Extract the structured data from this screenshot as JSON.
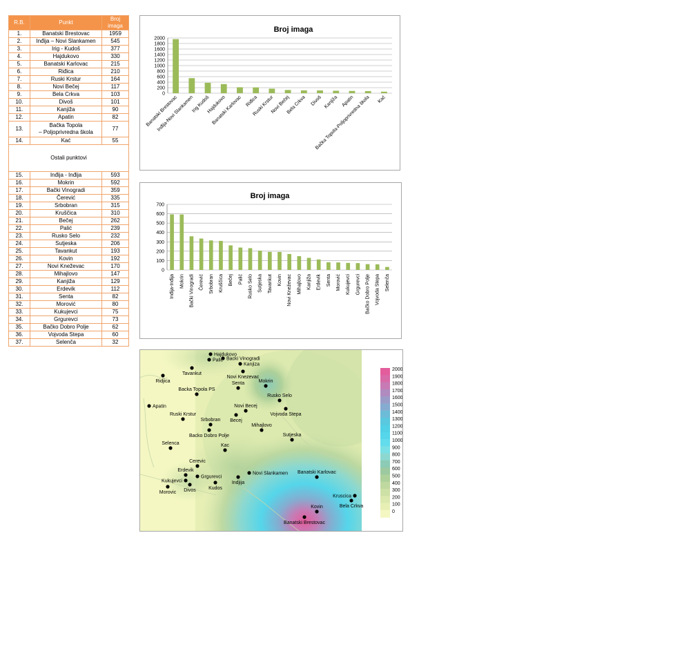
{
  "table": {
    "headers": [
      "R.B.",
      "Punkt",
      "Broj imaga"
    ],
    "rows": [
      {
        "rb": "1.",
        "punkt": "Banatski Brestovac",
        "broj": "1959"
      },
      {
        "rb": "2.",
        "punkt": "Inđija – Novi Slankamen",
        "broj": "545"
      },
      {
        "rb": "3.",
        "punkt": "Irig - Kudoš",
        "broj": "377"
      },
      {
        "rb": "4.",
        "punkt": "Hajdukovo",
        "broj": "330"
      },
      {
        "rb": "5.",
        "punkt": "Banatski Karlovac",
        "broj": "215"
      },
      {
        "rb": "6.",
        "punkt": "Riđica",
        "broj": "210"
      },
      {
        "rb": "7.",
        "punkt": "Ruski Krstur",
        "broj": "164"
      },
      {
        "rb": "8.",
        "punkt": "Novi Bečej",
        "broj": "117"
      },
      {
        "rb": "9.",
        "punkt": "Bela Crkva",
        "broj": "103"
      },
      {
        "rb": "10.",
        "punkt": "Divoš",
        "broj": "101"
      },
      {
        "rb": "11.",
        "punkt": "Kanjiža",
        "broj": "90"
      },
      {
        "rb": "12.",
        "punkt": "Apatin",
        "broj": "82"
      },
      {
        "rb": "13.",
        "punkt": "Bačka Topola – Poljoprivredna škola",
        "punkt1": "Bačka Topola",
        "punkt2": "– Poljoprivredna škola",
        "broj": "77"
      },
      {
        "rb": "14.",
        "punkt": "Kać",
        "broj": "55"
      }
    ],
    "section_label": "Ostali punktovi",
    "rows2": [
      {
        "rb": "15.",
        "punkt": "Inđija - Inđija",
        "broj": "593"
      },
      {
        "rb": "16.",
        "punkt": "Mokrin",
        "broj": "592"
      },
      {
        "rb": "17.",
        "punkt": "Bački Vinogradi",
        "broj": "359"
      },
      {
        "rb": "18.",
        "punkt": "Čerević",
        "broj": "335"
      },
      {
        "rb": "19.",
        "punkt": "Srbobran",
        "broj": "315"
      },
      {
        "rb": "20.",
        "punkt": "Kruščica",
        "broj": "310"
      },
      {
        "rb": "21.",
        "punkt": "Bečej",
        "broj": "262"
      },
      {
        "rb": "22.",
        "punkt": "Palić",
        "broj": "239"
      },
      {
        "rb": "23.",
        "punkt": "Rusko Selo",
        "broj": "232"
      },
      {
        "rb": "24.",
        "punkt": "Sutjeska",
        "broj": "206"
      },
      {
        "rb": "25.",
        "punkt": "Tavankut",
        "broj": "193"
      },
      {
        "rb": "26.",
        "punkt": "Kovin",
        "broj": "192"
      },
      {
        "rb": "27.",
        "punkt": "Novi Kneževac",
        "broj": "170"
      },
      {
        "rb": "28.",
        "punkt": "Mihajlovo",
        "broj": "147"
      },
      {
        "rb": "29.",
        "punkt": "Kanjiža",
        "broj": "129"
      },
      {
        "rb": "30.",
        "punkt": "Erdevik",
        "broj": "112"
      },
      {
        "rb": "31.",
        "punkt": "Senta",
        "broj": "82"
      },
      {
        "rb": "32.",
        "punkt": "Morović",
        "broj": "80"
      },
      {
        "rb": "33.",
        "punkt": "Kukujevci",
        "broj": "75"
      },
      {
        "rb": "34.",
        "punkt": "Grgurevci",
        "broj": "73"
      },
      {
        "rb": "35.",
        "punkt": "Bačko Dobro Polje",
        "broj": "62"
      },
      {
        "rb": "36.",
        "punkt": "Vojvoda Stepa",
        "broj": "60"
      },
      {
        "rb": "37.",
        "punkt": "Selenča",
        "broj": "32"
      }
    ]
  },
  "chart_data": [
    {
      "type": "bar",
      "title": "Broj imaga",
      "categories": [
        "Banatski Brestovac",
        "Inđija-Novi Slankamen",
        "Irig Kudoš",
        "Hajdukovo",
        "Banatski Karlovac",
        "Riđica",
        "Ruski Krstur",
        "Novi Bečej",
        "Bela Crkva",
        "Divoš",
        "Kanjiža",
        "Apatin",
        "Bačka Topola-Poljoprivredna škola",
        "Kać"
      ],
      "values": [
        1959,
        545,
        377,
        330,
        215,
        210,
        164,
        117,
        103,
        101,
        90,
        82,
        77,
        55
      ],
      "yticks": [
        "0",
        "200",
        "400",
        "600",
        "800",
        "1000",
        "1200",
        "1400",
        "1600",
        "1800",
        "2000"
      ],
      "ylim": [
        0,
        2000
      ],
      "grid": true,
      "color": "#9bbb59"
    },
    {
      "type": "bar",
      "title": "Broj imaga",
      "categories": [
        "Inđija-Inđija",
        "Mokrin",
        "Bački Vinogradi",
        "Čerević",
        "Srbobran",
        "Kruščica",
        "Bečej",
        "Palić",
        "Rusko Selo",
        "Sutjeska",
        "Tavankut",
        "Kovin",
        "Novi Kneževac",
        "Mihajlovo",
        "Kanjiža",
        "Erdevik",
        "Senta",
        "Morović",
        "Kukujevci",
        "Grgurevci",
        "Bačko Dobro Polje",
        "Vojvoda Stepa",
        "Selenča"
      ],
      "values": [
        593,
        592,
        359,
        335,
        315,
        310,
        262,
        239,
        232,
        206,
        193,
        192,
        170,
        147,
        129,
        112,
        82,
        80,
        75,
        73,
        62,
        60,
        32
      ],
      "yticks": [
        "0",
        "100",
        "200",
        "300",
        "400",
        "500",
        "600",
        "700"
      ],
      "ylim": [
        0,
        700
      ],
      "grid": true,
      "color": "#9bbb59"
    },
    {
      "type": "heatmap",
      "legend_ticks": [
        "2000",
        "1900",
        "1800",
        "1700",
        "1600",
        "1500",
        "1400",
        "1300",
        "1200",
        "1100",
        "1000",
        "900",
        "800",
        "700",
        "600",
        "500",
        "400",
        "300",
        "200",
        "100",
        "0"
      ],
      "legend_colors": [
        "#e35d9c",
        "#d86aa8",
        "#c87ab4",
        "#b08bbf",
        "#9a9cc8",
        "#85acd0",
        "#6cbcd8",
        "#5ac8de",
        "#52d0e6",
        "#55d6ea",
        "#63dcec",
        "#7ae0e6",
        "#8cd8d0",
        "#8ccbb5",
        "#9cc9a0",
        "#aed09a",
        "#bfd8a0",
        "#cde0a6",
        "#dbe8ae",
        "#e7efb5",
        "#f4f7c2"
      ],
      "points": [
        {
          "name": "Hajdukovo"
        },
        {
          "name": "Backi Vinogradi"
        },
        {
          "name": "Palic"
        },
        {
          "name": "Kanjiza"
        },
        {
          "name": "Tavankut"
        },
        {
          "name": "Novi Knezevac"
        },
        {
          "name": "Ridjica"
        },
        {
          "name": "Senta"
        },
        {
          "name": "Mokrin"
        },
        {
          "name": "Backa Topola PS"
        },
        {
          "name": "Rusko Selo"
        },
        {
          "name": "Apatin"
        },
        {
          "name": "Novi Becej"
        },
        {
          "name": "Vojvoda Stepa"
        },
        {
          "name": "Ruski Krstur"
        },
        {
          "name": "Srbobran"
        },
        {
          "name": "Becej"
        },
        {
          "name": "Mihajlovo"
        },
        {
          "name": "Backo Dobro Polje"
        },
        {
          "name": "Sutjeska"
        },
        {
          "name": "Selenca"
        },
        {
          "name": "Kac"
        },
        {
          "name": "Cerevic"
        },
        {
          "name": "Novi Slankamen"
        },
        {
          "name": "Erdevik"
        },
        {
          "name": "Banatski Karlovac"
        },
        {
          "name": "Grgurevci"
        },
        {
          "name": "Indjija"
        },
        {
          "name": "Kukujevci"
        },
        {
          "name": "Divos"
        },
        {
          "name": "Kudos"
        },
        {
          "name": "Morovic"
        },
        {
          "name": "Kruscica"
        },
        {
          "name": "Bela Crkva"
        },
        {
          "name": "Kovin"
        },
        {
          "name": "Banatski Brestovac"
        }
      ]
    }
  ]
}
